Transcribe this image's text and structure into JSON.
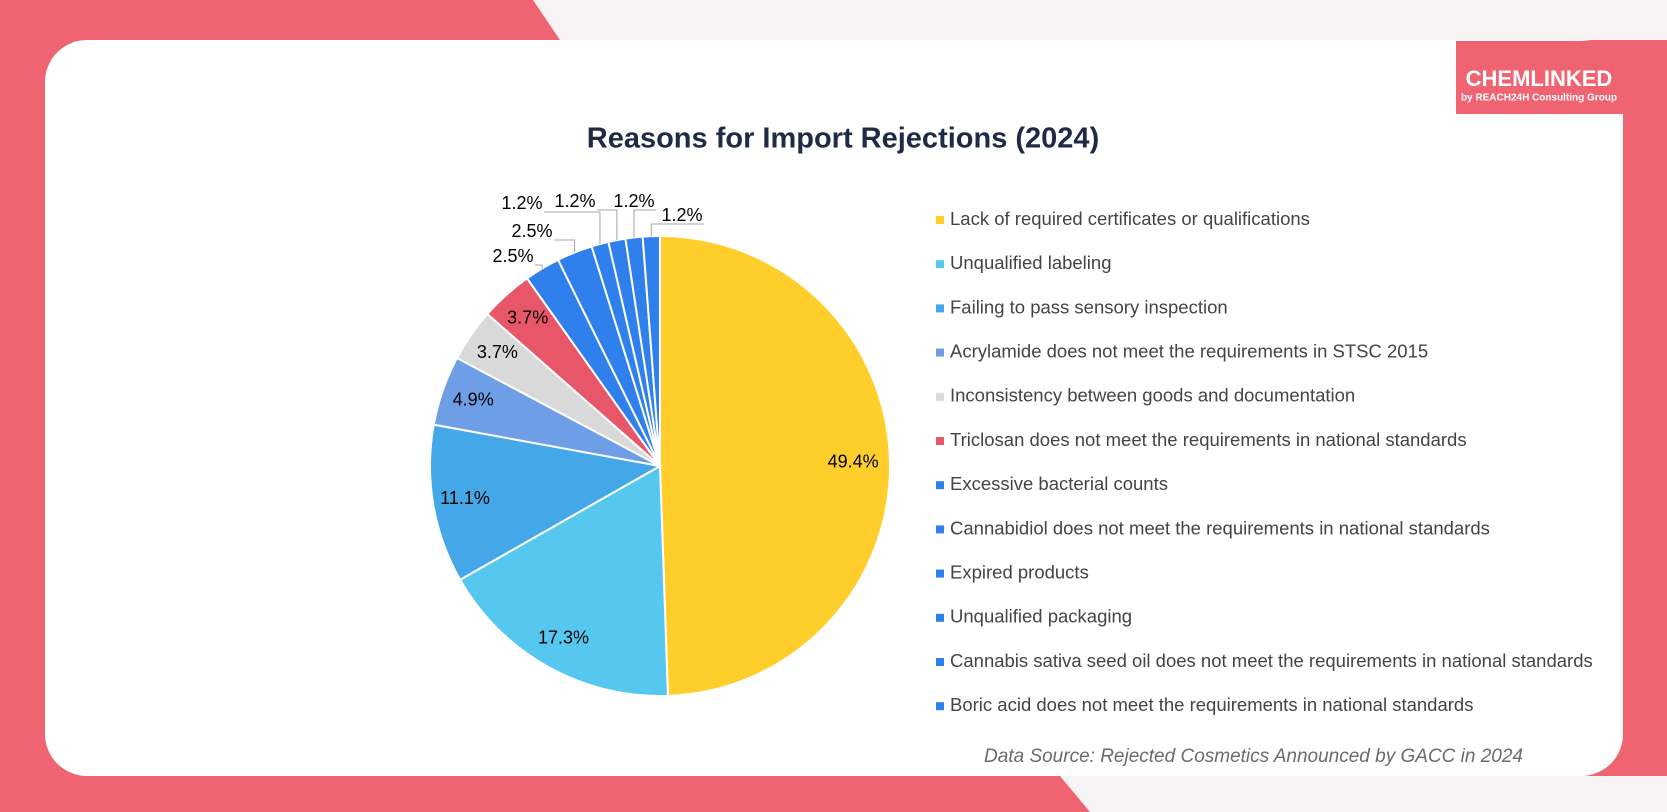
{
  "logo": {
    "name": "CHEMLINKED",
    "tagline": "by REACH24H Consulting Group"
  },
  "chart_data": {
    "type": "pie",
    "title": "Reasons for Import Rejections (2024)",
    "categories": [
      "Lack of required certificates or qualifications",
      "Unqualified labeling",
      "Failing to pass sensory inspection",
      "Acrylamide does not meet the requirements in STSC 2015",
      "Inconsistency between goods and documentation",
      "Triclosan does not meet the requirements in national standards",
      "Excessive bacterial counts",
      "Cannabidiol does not meet the requirements in national standards",
      "Expired products",
      "Unqualified packaging",
      "Cannabis sativa seed oil does not meet the requirements in national standards",
      "Boric acid does not meet the requirements in national standards"
    ],
    "values": [
      49.4,
      17.3,
      11.1,
      4.9,
      3.7,
      3.7,
      2.5,
      2.5,
      1.2,
      1.2,
      1.2,
      1.2
    ],
    "value_labels": [
      "49.4%",
      "17.3%",
      "11.1%",
      "4.9%",
      "3.7%",
      "3.7%",
      "2.5%",
      "2.5%",
      "1.2%",
      "1.2%",
      "1.2%",
      "1.2%"
    ],
    "colors": [
      "#FFCE2B",
      "#56C8F0",
      "#44A8E8",
      "#6E9EE6",
      "#D9D9D9",
      "#E8566A",
      "#2F80ED",
      "#2F80ED",
      "#2F80ED",
      "#2F80ED",
      "#2F80ED",
      "#2F80ED"
    ],
    "source": "Data Source: Rejected Cosmetics Announced by GACC in 2024"
  }
}
